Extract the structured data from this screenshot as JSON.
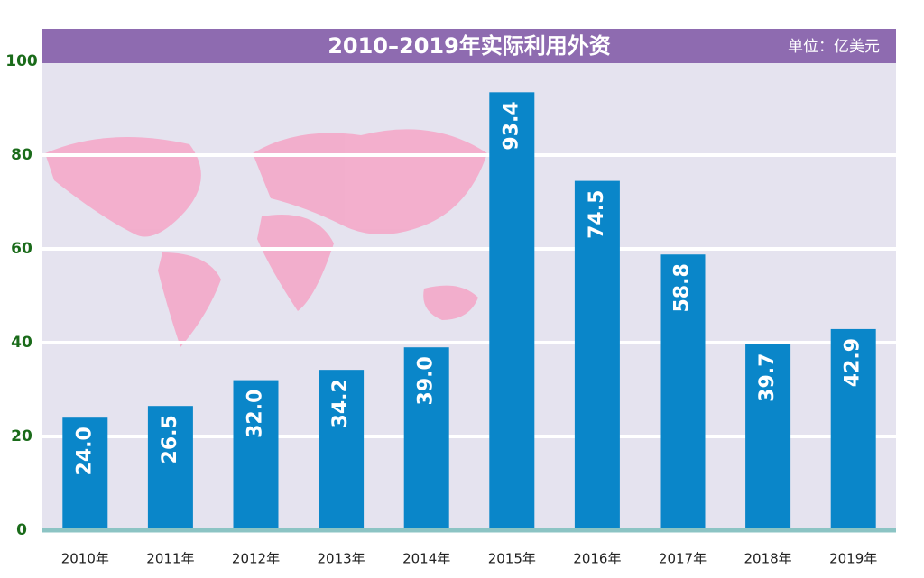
{
  "chart_data": {
    "type": "bar",
    "title": "2010–2019年实际利用外资",
    "unit": "单位：亿美元",
    "categories": [
      "2010年",
      "2011年",
      "2012年",
      "2013年",
      "2014年",
      "2015年",
      "2016年",
      "2017年",
      "2018年",
      "2019年"
    ],
    "values": [
      24.0,
      26.5,
      32.0,
      34.2,
      39.0,
      93.4,
      74.5,
      58.8,
      39.7,
      42.9
    ],
    "value_labels": [
      "24.0",
      "26.5",
      "32.0",
      "34.2",
      "39.0",
      "93.4",
      "74.5",
      "58.8",
      "39.7",
      "42.9"
    ],
    "color": "#0a86c9",
    "ylim": [
      0,
      100
    ],
    "yticks": [
      0,
      20,
      40,
      60,
      80,
      100
    ],
    "grid": true
  }
}
